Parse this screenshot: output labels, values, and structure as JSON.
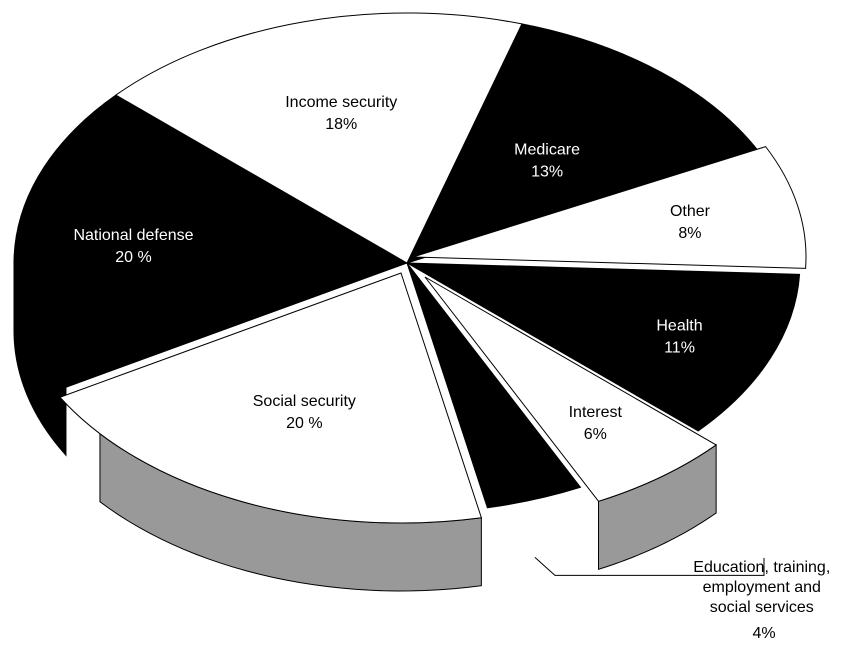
{
  "chart_data": {
    "type": "pie",
    "style": "3d-exploded",
    "colors": {
      "dark": "#000000",
      "light": "#ffffff",
      "side": "#999999"
    },
    "slices": [
      {
        "name": "Medicare",
        "pct_label": "13%",
        "value": 13,
        "tone": "dark"
      },
      {
        "name": "Other",
        "pct_label": "8%",
        "value": 8,
        "tone": "light"
      },
      {
        "name": "Health",
        "pct_label": "11%",
        "value": 11,
        "tone": "dark"
      },
      {
        "name": "Interest",
        "pct_label": "6%",
        "value": 6,
        "tone": "light"
      },
      {
        "name": "Education, training, employment and social services",
        "pct_label": "4%",
        "value": 4,
        "tone": "dark"
      },
      {
        "name": "Social security",
        "pct_label": "20 %",
        "value": 20,
        "tone": "light"
      },
      {
        "name": "National defense",
        "pct_label": "20 %",
        "value": 20,
        "tone": "dark"
      },
      {
        "name": "Income security",
        "pct_label": "18%",
        "value": 18,
        "tone": "light"
      }
    ],
    "callout_label_lines": [
      "Education, training,",
      "employment and",
      "social services",
      "4%"
    ]
  }
}
